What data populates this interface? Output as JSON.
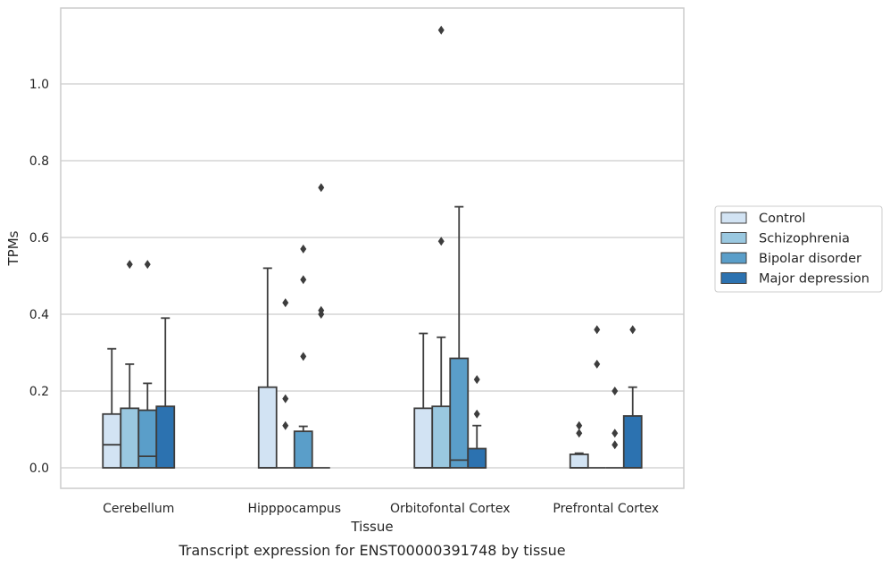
{
  "chart_data": {
    "type": "box",
    "xlabel": "Tissue",
    "ylabel": "TPMs",
    "caption": "Transcript expression for ENST00000391748 by tissue",
    "ylim": [
      -0.055,
      1.2
    ],
    "yticks": [
      0.0,
      0.2,
      0.4,
      0.6,
      0.8,
      1.0
    ],
    "ytick_labels": [
      "0.0",
      "0.2",
      "0.4",
      "0.6",
      "0.8",
      "1.0"
    ],
    "grid": true,
    "legend_position": "outside-right",
    "categories": [
      "Cerebellum",
      "Hipppocampus",
      "Orbitofontal Cortex",
      "Prefrontal Cortex"
    ],
    "series": [
      {
        "name": "Control",
        "color": "#d2e3f3",
        "boxes": [
          {
            "q1": 0.0,
            "median": 0.06,
            "q3": 0.14,
            "whisker_low": 0.0,
            "whisker_high": 0.31,
            "outliers": []
          },
          {
            "q1": 0.0,
            "median": 0.0,
            "q3": 0.21,
            "whisker_low": 0.0,
            "whisker_high": 0.52,
            "outliers": []
          },
          {
            "q1": 0.0,
            "median": 0.0,
            "q3": 0.155,
            "whisker_low": 0.0,
            "whisker_high": 0.35,
            "outliers": []
          },
          {
            "q1": 0.0,
            "median": 0.0,
            "q3": 0.035,
            "whisker_low": 0.0,
            "whisker_high": 0.038,
            "outliers": [
              0.09,
              0.11
            ]
          }
        ]
      },
      {
        "name": "Schizophrenia",
        "color": "#9ac8e0",
        "boxes": [
          {
            "q1": 0.0,
            "median": 0.0,
            "q3": 0.155,
            "whisker_low": 0.0,
            "whisker_high": 0.27,
            "outliers": [
              0.53
            ]
          },
          {
            "q1": 0.0,
            "median": 0.0,
            "q3": 0.0,
            "whisker_low": 0.0,
            "whisker_high": 0.0,
            "outliers": [
              0.11,
              0.18,
              0.43
            ]
          },
          {
            "q1": 0.0,
            "median": 0.0,
            "q3": 0.16,
            "whisker_low": 0.0,
            "whisker_high": 0.34,
            "outliers": [
              0.59,
              1.14
            ]
          },
          {
            "q1": 0.0,
            "median": 0.0,
            "q3": 0.0,
            "whisker_low": 0.0,
            "whisker_high": 0.0,
            "outliers": [
              0.27,
              0.36
            ]
          }
        ]
      },
      {
        "name": "Bipolar disorder",
        "color": "#5a9ec9",
        "boxes": [
          {
            "q1": 0.0,
            "median": 0.03,
            "q3": 0.15,
            "whisker_low": 0.0,
            "whisker_high": 0.22,
            "outliers": [
              0.53
            ]
          },
          {
            "q1": 0.0,
            "median": 0.0,
            "q3": 0.095,
            "whisker_low": 0.0,
            "whisker_high": 0.108,
            "outliers": [
              0.29,
              0.49,
              0.57
            ]
          },
          {
            "q1": 0.0,
            "median": 0.02,
            "q3": 0.285,
            "whisker_low": 0.0,
            "whisker_high": 0.68,
            "outliers": []
          },
          {
            "q1": 0.0,
            "median": 0.0,
            "q3": 0.0,
            "whisker_low": 0.0,
            "whisker_high": 0.0,
            "outliers": [
              0.06,
              0.09,
              0.2
            ]
          }
        ]
      },
      {
        "name": "Major depression",
        "color": "#2c72b0",
        "boxes": [
          {
            "q1": 0.0,
            "median": 0.0,
            "q3": 0.16,
            "whisker_low": 0.0,
            "whisker_high": 0.39,
            "outliers": []
          },
          {
            "q1": 0.0,
            "median": 0.0,
            "q3": 0.0,
            "whisker_low": 0.0,
            "whisker_high": 0.0,
            "outliers": [
              0.4,
              0.41,
              0.73
            ]
          },
          {
            "q1": 0.0,
            "median": 0.0,
            "q3": 0.05,
            "whisker_low": 0.0,
            "whisker_high": 0.11,
            "outliers": [
              0.14,
              0.23
            ]
          },
          {
            "q1": 0.0,
            "median": 0.0,
            "q3": 0.135,
            "whisker_low": 0.0,
            "whisker_high": 0.21,
            "outliers": [
              0.36
            ]
          }
        ]
      }
    ]
  }
}
